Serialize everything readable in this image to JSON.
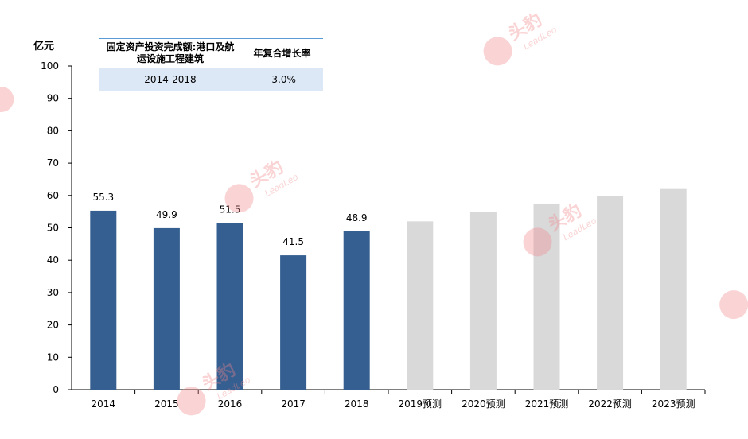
{
  "unit_label": "亿元",
  "cagr_table": {
    "header_col1": "固定资产投资完成额:港口及航运设施工程建筑",
    "header_col2": "年复合增长率",
    "row_period": "2014-2018",
    "row_value": "-3.0%"
  },
  "watermark": {
    "brand_cn": "头豹",
    "brand_en": "LeadLeo"
  },
  "chart_data": {
    "type": "bar",
    "categories": [
      "2014",
      "2015",
      "2016",
      "2017",
      "2018",
      "2019预测",
      "2020预测",
      "2021预测",
      "2022预测",
      "2023预测"
    ],
    "series": [
      {
        "values": [
          55.3,
          49.9,
          51.5,
          41.5,
          48.9,
          52.0,
          55.0,
          57.5,
          59.8,
          62.0
        ],
        "data_labels": [
          "55.3",
          "49.9",
          "51.5",
          "41.5",
          "48.9",
          "",
          "",
          "",
          "",
          ""
        ]
      }
    ],
    "colors": [
      "#355f91",
      "#355f91",
      "#355f91",
      "#355f91",
      "#355f91",
      "#d9d9d9",
      "#d9d9d9",
      "#d9d9d9",
      "#d9d9d9",
      "#d9d9d9"
    ],
    "ylabel": "亿元",
    "ylim": [
      0,
      100
    ],
    "yticks": [
      0,
      10,
      20,
      30,
      40,
      50,
      60,
      70,
      80,
      90,
      100
    ],
    "grid": false,
    "legend": "none"
  }
}
